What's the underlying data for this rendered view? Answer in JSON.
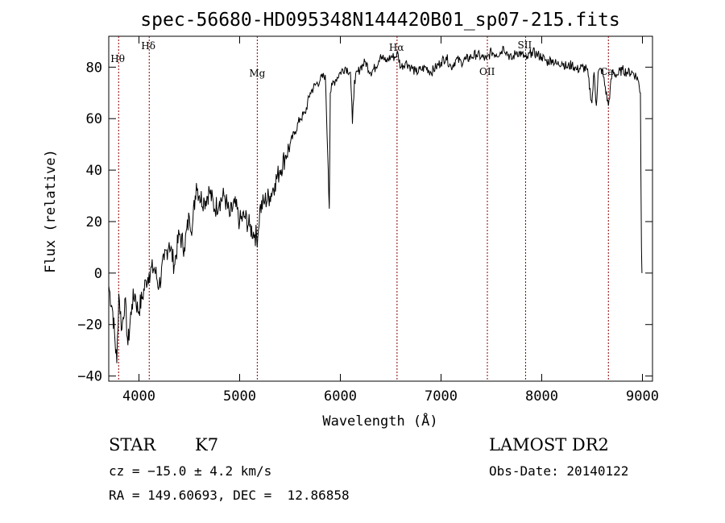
{
  "chart_data": {
    "type": "line",
    "title": "spec-56680-HD095348N144420B01_sp07-215.fits",
    "xlabel": "Wavelength (Å)",
    "ylabel": "Flux (relative)",
    "xlim": [
      3700,
      9100
    ],
    "ylim": [
      -42,
      92
    ],
    "xticks": [
      4000,
      5000,
      6000,
      7000,
      8000,
      9000
    ],
    "yticks": [
      -40,
      -20,
      0,
      20,
      40,
      60,
      80
    ],
    "line_color": "#000000",
    "marker_color": "#8b0000",
    "grid": false,
    "series": [
      {
        "x": [
          3700,
          3740,
          3780,
          3800,
          3830,
          3860,
          3890,
          3930,
          3960,
          3990,
          4030,
          4070,
          4100,
          4150,
          4200,
          4250,
          4300,
          4350,
          4400,
          4450,
          4500,
          4530,
          4570,
          4600,
          4650,
          4700,
          4750,
          4800,
          4850,
          4900,
          4950,
          5000,
          5050,
          5100,
          5150,
          5180,
          5200,
          5250,
          5300,
          5350,
          5400,
          5450,
          5500,
          5550,
          5600,
          5650,
          5700,
          5750,
          5800,
          5850,
          5880,
          5890,
          5900,
          5920,
          5950,
          6000,
          6050,
          6100,
          6120,
          6140,
          6200,
          6250,
          6300,
          6350,
          6400,
          6450,
          6500,
          6550,
          6563,
          6600,
          6650,
          6700,
          6750,
          6800,
          6850,
          6900,
          6950,
          7000,
          7050,
          7100,
          7150,
          7200,
          7250,
          7300,
          7350,
          7400,
          7450,
          7500,
          7550,
          7600,
          7620,
          7650,
          7700,
          7750,
          7800,
          7850,
          7900,
          7950,
          8000,
          8050,
          8100,
          8150,
          8200,
          8250,
          8300,
          8350,
          8400,
          8450,
          8498,
          8520,
          8542,
          8560,
          8600,
          8662,
          8700,
          8750,
          8800,
          8850,
          8900,
          8950,
          8980,
          8990,
          8995
        ],
        "y": [
          -5,
          -15,
          -35,
          -8,
          -22,
          -10,
          -28,
          -12,
          -8,
          -15,
          -10,
          -3,
          0,
          2,
          -5,
          5,
          12,
          3,
          15,
          10,
          22,
          18,
          35,
          30,
          28,
          32,
          25,
          28,
          30,
          22,
          27,
          20,
          22,
          18,
          15,
          14,
          25,
          28,
          30,
          35,
          40,
          45,
          50,
          55,
          60,
          62,
          70,
          73,
          75,
          77,
          40,
          25,
          70,
          73,
          75,
          78,
          80,
          78,
          58,
          75,
          80,
          82,
          78,
          80,
          85,
          82,
          84,
          84,
          86,
          80,
          82,
          80,
          78,
          79,
          80,
          78,
          80,
          82,
          84,
          80,
          83,
          82,
          83,
          84,
          85,
          84,
          83,
          86,
          85,
          86,
          88,
          86,
          83,
          86,
          85,
          83,
          86,
          85,
          84,
          82,
          83,
          81,
          82,
          80,
          81,
          79,
          80,
          79,
          66,
          78,
          65,
          78,
          79,
          65,
          78,
          77,
          79,
          78,
          78,
          76,
          70,
          10,
          0
        ]
      }
    ],
    "lines": [
      {
        "label": "Hθ",
        "x": 3798
      },
      {
        "label": "Hδ",
        "x": 4102
      },
      {
        "label": "Mg",
        "x": 5175
      },
      {
        "label": "Hα",
        "x": 6563
      },
      {
        "label": "OII",
        "x": 7460
      },
      {
        "label": "SII",
        "x": 7840
      },
      {
        "label": "Ca",
        "x": 8662
      }
    ]
  },
  "info": {
    "object_type": "STAR",
    "subclass": "K7",
    "survey": "LAMOST DR2",
    "cz": "cz = −15.0 ± 4.2 km/s",
    "obs_date": "Obs-Date: 20140122",
    "coords": "RA = 149.60693, DEC =  12.86858"
  }
}
